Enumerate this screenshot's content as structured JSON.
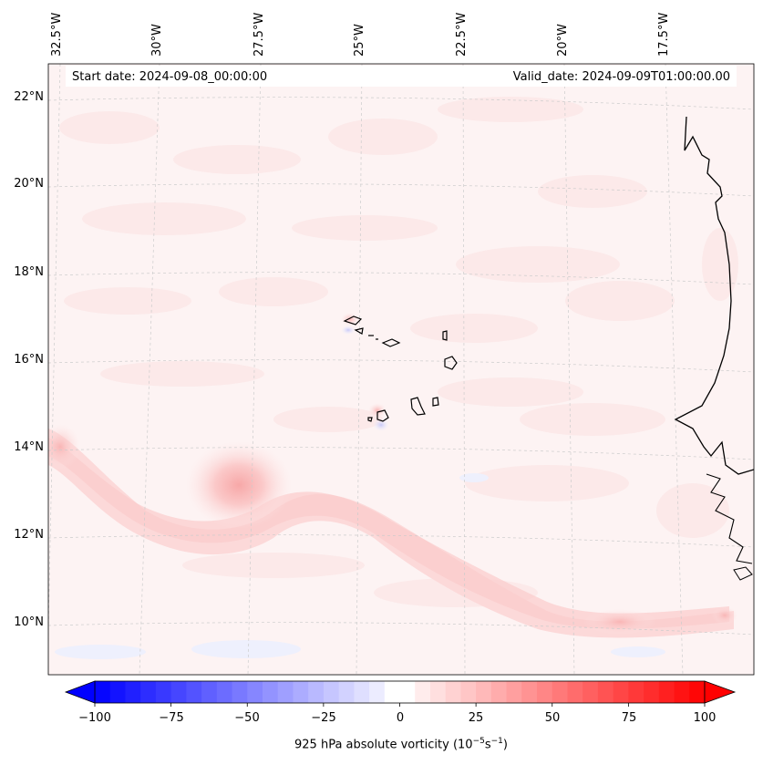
{
  "map": {
    "start_date": "Start date: 2024-09-08_00:00:00",
    "valid_date": "Valid_date: 2024-09-09T01:00:00.00",
    "lon_labels": [
      "32.5°W",
      "30°W",
      "27.5°W",
      "25°W",
      "22.5°W",
      "20°W",
      "17.5°W"
    ],
    "lat_labels": [
      "22°N",
      "20°N",
      "18°N",
      "16°N",
      "14°N",
      "12°N",
      "10°N"
    ]
  },
  "colorbar": {
    "ticks": [
      "−100",
      "−75",
      "−50",
      "−25",
      "0",
      "25",
      "50",
      "75",
      "100"
    ],
    "label_prefix": "925 hPa absolute vorticity (10",
    "label_exp1": "−5",
    "label_mid": "s",
    "label_exp2": "−1",
    "label_suffix": ")",
    "min": -100,
    "max": 100,
    "levels": 40
  },
  "colors": {
    "negative": "#0000ff",
    "positive": "#ff0000",
    "neutral": "#ffffff",
    "coast": "#000000"
  }
}
